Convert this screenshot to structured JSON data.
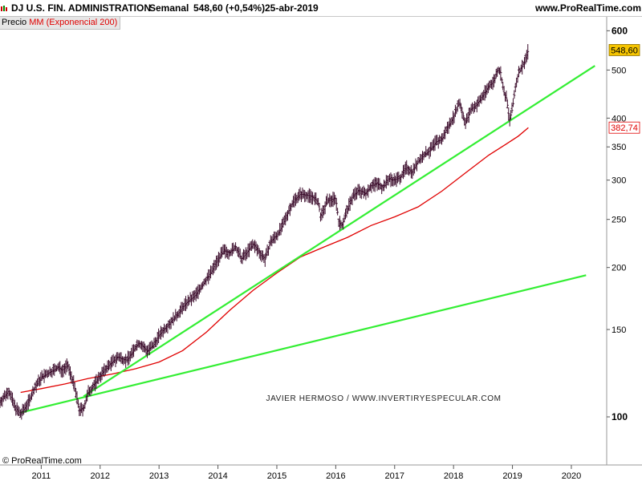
{
  "header": {
    "instrument": "DJ U.S. FIN. ADMINISTRATION",
    "period": "Semanal",
    "quote": "548,60 (+0,54%)",
    "date": "25-abr-2019",
    "site": "www.ProRealTime.com"
  },
  "legend": {
    "price_label": "Precio",
    "ma_label": "MM (Exponencial 200)"
  },
  "watermark": "JAVIER HERMOSO / WWW.INVERTIRYESPECULAR.COM",
  "copyright": "© ProRealTime.com",
  "colors": {
    "price": "#3a0a2a",
    "ma": "#e00000",
    "trendline": "#33ee33",
    "price_badge_bg": "#f5c400",
    "ma_badge_text": "#e00000"
  },
  "chart_data": {
    "type": "line",
    "y_scale": "log",
    "ylim": [
      80,
      640
    ],
    "xlim": [
      2010.3,
      2020.6
    ],
    "y_ticks": [
      100,
      150,
      200,
      250,
      300,
      350,
      400,
      500,
      600
    ],
    "y_tick_labels": [
      "100",
      "150",
      "200",
      "250",
      "300",
      "350",
      "400",
      "500",
      "600"
    ],
    "x_ticks": [
      2011,
      2012,
      2013,
      2014,
      2015,
      2016,
      2017,
      2018,
      2019,
      2020
    ],
    "x_tick_labels": [
      "2011",
      "2012",
      "2013",
      "2014",
      "2015",
      "2016",
      "2017",
      "2018",
      "2019",
      "2020"
    ],
    "last_price_label": "548,60",
    "last_ma_label": "382,74",
    "last_price": 548.6,
    "last_ma": 382.74,
    "series": [
      {
        "name": "Precio",
        "style": "weekly-bars",
        "points": [
          [
            2010.3,
            107
          ],
          [
            2010.45,
            113
          ],
          [
            2010.55,
            105
          ],
          [
            2010.65,
            101
          ],
          [
            2010.8,
            108
          ],
          [
            2010.9,
            115
          ],
          [
            2011.0,
            120
          ],
          [
            2011.15,
            123
          ],
          [
            2011.3,
            126
          ],
          [
            2011.35,
            124
          ],
          [
            2011.45,
            127
          ],
          [
            2011.55,
            117
          ],
          [
            2011.65,
            103
          ],
          [
            2011.72,
            104
          ],
          [
            2011.8,
            112
          ],
          [
            2011.9,
            116
          ],
          [
            2012.0,
            121
          ],
          [
            2012.15,
            127
          ],
          [
            2012.3,
            132
          ],
          [
            2012.45,
            130
          ],
          [
            2012.55,
            135
          ],
          [
            2012.65,
            141
          ],
          [
            2012.8,
            136
          ],
          [
            2012.9,
            139
          ],
          [
            2013.0,
            146
          ],
          [
            2013.15,
            153
          ],
          [
            2013.3,
            160
          ],
          [
            2013.45,
            169
          ],
          [
            2013.6,
            175
          ],
          [
            2013.75,
            185
          ],
          [
            2013.9,
            197
          ],
          [
            2014.0,
            208
          ],
          [
            2014.1,
            216
          ],
          [
            2014.2,
            214
          ],
          [
            2014.3,
            220
          ],
          [
            2014.4,
            208
          ],
          [
            2014.5,
            215
          ],
          [
            2014.6,
            223
          ],
          [
            2014.7,
            215
          ],
          [
            2014.8,
            208
          ],
          [
            2014.9,
            226
          ],
          [
            2015.0,
            232
          ],
          [
            2015.1,
            243
          ],
          [
            2015.2,
            260
          ],
          [
            2015.3,
            274
          ],
          [
            2015.4,
            281
          ],
          [
            2015.5,
            280
          ],
          [
            2015.6,
            278
          ],
          [
            2015.7,
            271
          ],
          [
            2015.75,
            252
          ],
          [
            2015.85,
            272
          ],
          [
            2016.0,
            276
          ],
          [
            2016.05,
            248
          ],
          [
            2016.1,
            242
          ],
          [
            2016.2,
            262
          ],
          [
            2016.3,
            280
          ],
          [
            2016.4,
            286
          ],
          [
            2016.5,
            282
          ],
          [
            2016.6,
            292
          ],
          [
            2016.7,
            296
          ],
          [
            2016.8,
            290
          ],
          [
            2016.9,
            302
          ],
          [
            2017.0,
            300
          ],
          [
            2017.1,
            304
          ],
          [
            2017.2,
            318
          ],
          [
            2017.3,
            312
          ],
          [
            2017.4,
            327
          ],
          [
            2017.5,
            337
          ],
          [
            2017.6,
            344
          ],
          [
            2017.7,
            358
          ],
          [
            2017.8,
            362
          ],
          [
            2017.9,
            383
          ],
          [
            2018.0,
            402
          ],
          [
            2018.1,
            432
          ],
          [
            2018.15,
            410
          ],
          [
            2018.2,
            390
          ],
          [
            2018.3,
            417
          ],
          [
            2018.4,
            426
          ],
          [
            2018.5,
            444
          ],
          [
            2018.6,
            463
          ],
          [
            2018.7,
            479
          ],
          [
            2018.75,
            502
          ],
          [
            2018.8,
            494
          ],
          [
            2018.85,
            452
          ],
          [
            2018.9,
            438
          ],
          [
            2018.95,
            396
          ],
          [
            2019.0,
            418
          ],
          [
            2019.05,
            462
          ],
          [
            2019.1,
            492
          ],
          [
            2019.2,
            517
          ],
          [
            2019.27,
            548.6
          ]
        ]
      },
      {
        "name": "MM (Exponencial 200)",
        "points": [
          [
            2010.65,
            112
          ],
          [
            2011.0,
            114
          ],
          [
            2011.4,
            116.5
          ],
          [
            2011.8,
            119.5
          ],
          [
            2012.2,
            122
          ],
          [
            2012.6,
            125
          ],
          [
            2013.0,
            129
          ],
          [
            2013.4,
            136
          ],
          [
            2013.8,
            148
          ],
          [
            2014.2,
            164
          ],
          [
            2014.6,
            180
          ],
          [
            2015.0,
            195
          ],
          [
            2015.4,
            210
          ],
          [
            2015.8,
            220
          ],
          [
            2016.2,
            230
          ],
          [
            2016.6,
            243
          ],
          [
            2017.0,
            253
          ],
          [
            2017.4,
            265
          ],
          [
            2017.8,
            285
          ],
          [
            2018.2,
            310
          ],
          [
            2018.6,
            337
          ],
          [
            2018.9,
            355
          ],
          [
            2019.1,
            368
          ],
          [
            2019.27,
            382.74
          ]
        ]
      },
      {
        "name": "trendline-steep",
        "style": "trendline",
        "points": [
          [
            2011.72,
            110
          ],
          [
            2020.4,
            510
          ]
        ]
      },
      {
        "name": "trendline-shallow",
        "style": "trendline",
        "points": [
          [
            2010.65,
            102
          ],
          [
            2020.25,
            193
          ]
        ]
      }
    ]
  }
}
